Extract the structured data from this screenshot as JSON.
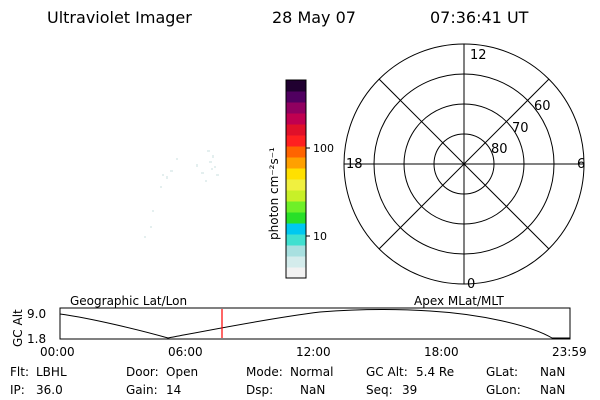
{
  "header": {
    "instrument": "Ultraviolet Imager",
    "date": "28 May 07",
    "time": "07:36:41 UT"
  },
  "colorbar": {
    "unit_label": "photon cm⁻²s⁻¹",
    "ticks": [
      {
        "label": "100",
        "value": 100
      },
      {
        "label": "10",
        "value": 10
      }
    ],
    "colors": [
      "#f2f2f2",
      "#d4ecec",
      "#a8e0e0",
      "#40e0d0",
      "#00c8f0",
      "#28e028",
      "#6ef028",
      "#c8f028",
      "#f0f040",
      "#ffe000",
      "#ffa000",
      "#ff6400",
      "#ff2020",
      "#e0102a",
      "#c00050",
      "#900060",
      "#500060",
      "#200030"
    ]
  },
  "polar_plot": {
    "mlt_labels": {
      "top": "12",
      "left": "18",
      "right": "6",
      "bottom": "0"
    },
    "lat_labels": [
      "60",
      "70",
      "80"
    ]
  },
  "timeline": {
    "left_label": "Geographic Lat/Lon",
    "right_label": "Apex MLat/MLT",
    "axis_title": "GC Alt",
    "y_ticks": [
      "9.0",
      "1.8"
    ],
    "x_ticks": [
      "00:00",
      "06:00",
      "12:00",
      "18:00",
      "23:59"
    ],
    "current_time_marker": "07:36:41",
    "marker_color": "#ff0000"
  },
  "status": {
    "flt": {
      "label": "Flt:",
      "value": "LBHL"
    },
    "ip": {
      "label": "IP:",
      "value": "36.0"
    },
    "door": {
      "label": "Door:",
      "value": "Open"
    },
    "gain": {
      "label": "Gain:",
      "value": "14"
    },
    "mode": {
      "label": "Mode:",
      "value": "Normal"
    },
    "dsp": {
      "label": "Dsp:",
      "value": "NaN"
    },
    "gcalt": {
      "label": "GC Alt:",
      "value": "5.4 Re"
    },
    "seq": {
      "label": "Seq:",
      "value": "39"
    },
    "glat": {
      "label": "GLat:",
      "value": "NaN"
    },
    "glon": {
      "label": "GLon:",
      "value": "NaN"
    }
  }
}
